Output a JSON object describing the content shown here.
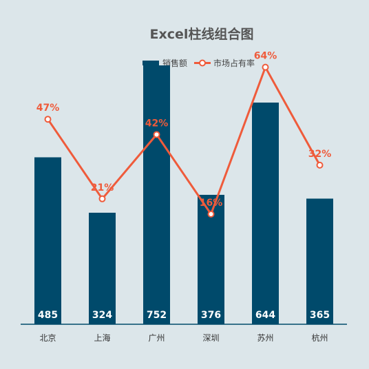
{
  "chart_data": {
    "type": "bar",
    "title": "Excel柱线组合图",
    "categories": [
      "北京",
      "上海",
      "广州",
      "深圳",
      "苏州",
      "杭州"
    ],
    "series": [
      {
        "name": "销售额",
        "type": "bar",
        "values": [
          485,
          324,
          752,
          376,
          644,
          365
        ],
        "labels": [
          "485",
          "324",
          "752",
          "376",
          "644",
          "365"
        ],
        "axis": "primary"
      },
      {
        "name": "市场占有率",
        "type": "line",
        "values": [
          0.47,
          0.21,
          0.42,
          0.16,
          0.64,
          0.32
        ],
        "labels": [
          "47%",
          "21%",
          "42%",
          "16%",
          "64%",
          "32%"
        ],
        "axis": "secondary"
      }
    ],
    "ylim": [
      0,
      800
    ],
    "y2lim": [
      -0.2,
      0.7
    ],
    "grid": false,
    "legend_position": "top"
  },
  "colors": {
    "background": "#dce6ea",
    "bar": "#004a6b",
    "line": "#ef5b3b",
    "axis": "#004a6b",
    "marker_fill": "#ffffff"
  }
}
